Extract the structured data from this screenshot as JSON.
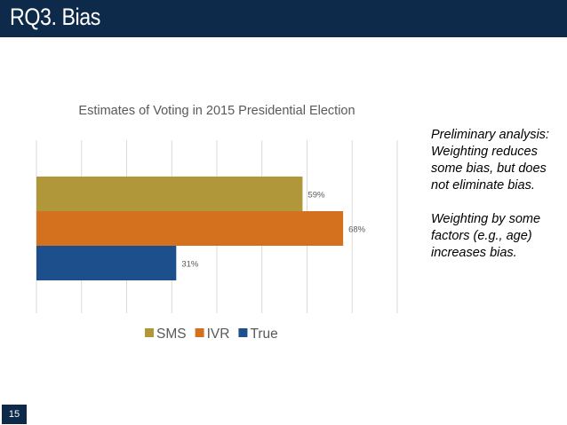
{
  "slide": {
    "title": "RQ3. Bias",
    "page_number": "15",
    "colors": {
      "title_bar": "#0e2a4a"
    }
  },
  "note": {
    "paragraph_1": "Preliminary analysis: Weighting reduces some bias, but does not eliminate bias.",
    "paragraph_2": "Weighting by some factors (e.g., age) increases bias."
  },
  "chart_data": {
    "type": "bar",
    "orientation": "horizontal",
    "title": "Estimates of Voting in 2015 Presidential Election",
    "xlabel": "",
    "ylabel": "",
    "xlim": [
      0,
      80
    ],
    "grid": true,
    "legend_position": "bottom",
    "series": [
      {
        "name": "SMS",
        "value": 59,
        "label": "59%",
        "color": "#b0973a"
      },
      {
        "name": "IVR",
        "value": 68,
        "label": "68%",
        "color": "#d4711e"
      },
      {
        "name": "True",
        "value": 31,
        "label": "31%",
        "color": "#1c4f8c"
      }
    ]
  }
}
